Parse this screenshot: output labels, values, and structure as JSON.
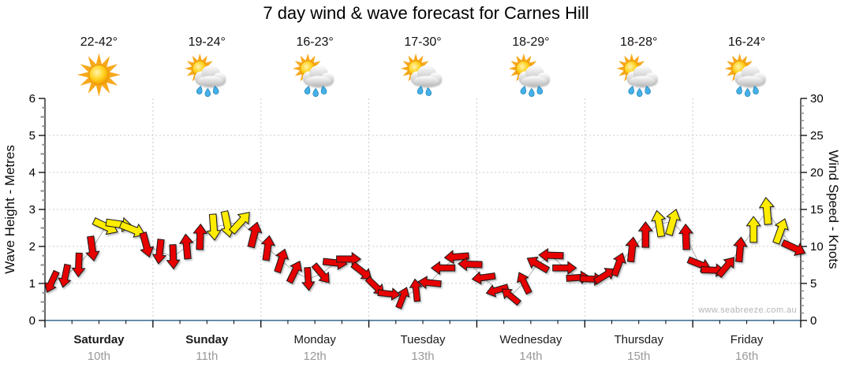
{
  "title": "7 day wind & wave forecast for Carnes Hill",
  "days": [
    {
      "name": "Saturday",
      "date": "10th",
      "temp": "22-42°",
      "icon": "sunny",
      "weekend": true
    },
    {
      "name": "Sunday",
      "date": "11th",
      "temp": "19-24°",
      "icon": "sun-cloud-rain",
      "weekend": true
    },
    {
      "name": "Monday",
      "date": "12th",
      "temp": "16-23°",
      "icon": "sun-cloud-rain",
      "weekend": false
    },
    {
      "name": "Tuesday",
      "date": "13th",
      "temp": "17-30°",
      "icon": "sun-cloud-light-rain",
      "weekend": false
    },
    {
      "name": "Wednesday",
      "date": "14th",
      "temp": "18-29°",
      "icon": "sun-cloud-rain",
      "weekend": false
    },
    {
      "name": "Thursday",
      "date": "15th",
      "temp": "18-28°",
      "icon": "sun-cloud-rain",
      "weekend": false
    },
    {
      "name": "Friday",
      "date": "16th",
      "temp": "16-24°",
      "icon": "sun-cloud-rain",
      "weekend": false
    }
  ],
  "chart_data": {
    "type": "scatter",
    "subtype": "wind-direction-arrow-timeseries",
    "title": "7 day wind & wave forecast for Carnes Hill",
    "x_categories": [
      "Saturday",
      "Sunday",
      "Monday",
      "Tuesday",
      "Wednesday",
      "Thursday",
      "Friday"
    ],
    "x_dates": [
      "10th",
      "11th",
      "12th",
      "13th",
      "14th",
      "15th",
      "16th"
    ],
    "slots_per_day": 8,
    "left_axis": {
      "label": "Wave Height - Metres",
      "min": 0,
      "max": 6,
      "ticks": [
        0,
        1,
        2,
        3,
        4,
        5,
        6
      ]
    },
    "right_axis": {
      "label": "Wind Speed - Knots",
      "min": 0,
      "max": 30,
      "ticks": [
        0,
        5,
        10,
        15,
        20,
        25,
        30
      ]
    },
    "scale_note": "axes aligned so 1 metre = 5 knots; grid on; dotted gridlines",
    "watermark": "www.seabreeze.com.au",
    "arrow_colors": {
      "normal": "#e60000",
      "strong": "#ffec00",
      "outline": "#1a1a1a"
    },
    "axis_colors": {
      "bottom_axis": "#33688a",
      "gridline": "#c8c8c8",
      "date_text": "#999999"
    },
    "points_format": "[day_index, slot_of_8, wind_knots, arrow_points_deg_cw_from_up, color r=red y=yellow]",
    "points": [
      [
        0,
        0,
        5.2,
        205,
        "r"
      ],
      [
        0,
        1,
        6.0,
        192,
        "r"
      ],
      [
        0,
        2,
        7.5,
        182,
        "r"
      ],
      [
        0,
        3,
        9.7,
        172,
        "r"
      ],
      [
        0,
        4,
        12.7,
        115,
        "y"
      ],
      [
        0,
        5,
        13.0,
        98,
        "y"
      ],
      [
        0,
        6,
        12.3,
        112,
        "y"
      ],
      [
        0,
        7,
        10.2,
        165,
        "r"
      ],
      [
        1,
        0,
        9.3,
        186,
        "r"
      ],
      [
        1,
        1,
        8.6,
        178,
        "r"
      ],
      [
        1,
        2,
        10.0,
        355,
        "r"
      ],
      [
        1,
        3,
        11.3,
        2,
        "r"
      ],
      [
        1,
        4,
        12.6,
        176,
        "y"
      ],
      [
        1,
        5,
        13.0,
        168,
        "y"
      ],
      [
        1,
        6,
        13.3,
        42,
        "y"
      ],
      [
        1,
        7,
        11.6,
        14,
        "r"
      ],
      [
        2,
        0,
        9.8,
        8,
        "r"
      ],
      [
        2,
        1,
        8.1,
        18,
        "r"
      ],
      [
        2,
        2,
        6.6,
        26,
        "r"
      ],
      [
        2,
        3,
        5.6,
        176,
        "r"
      ],
      [
        2,
        4,
        6.3,
        140,
        "r"
      ],
      [
        2,
        5,
        7.8,
        96,
        "r"
      ],
      [
        2,
        6,
        8.3,
        90,
        "r"
      ],
      [
        2,
        7,
        6.6,
        128,
        "r"
      ],
      [
        3,
        0,
        4.6,
        134,
        "r"
      ],
      [
        3,
        1,
        3.6,
        96,
        "r"
      ],
      [
        3,
        2,
        3.1,
        22,
        "r"
      ],
      [
        3,
        3,
        4.1,
        354,
        "r"
      ],
      [
        3,
        4,
        5.1,
        276,
        "r"
      ],
      [
        3,
        5,
        7.1,
        270,
        "r"
      ],
      [
        3,
        6,
        8.6,
        266,
        "r"
      ],
      [
        3,
        7,
        7.6,
        272,
        "r"
      ],
      [
        4,
        0,
        5.8,
        262,
        "r"
      ],
      [
        4,
        1,
        4.1,
        254,
        "r"
      ],
      [
        4,
        2,
        3.3,
        310,
        "r"
      ],
      [
        4,
        3,
        5.1,
        334,
        "r"
      ],
      [
        4,
        4,
        7.6,
        300,
        "r"
      ],
      [
        4,
        5,
        8.8,
        272,
        "r"
      ],
      [
        4,
        6,
        7.1,
        90,
        "r"
      ],
      [
        4,
        7,
        5.8,
        86,
        "r"
      ],
      [
        5,
        0,
        5.6,
        92,
        "r"
      ],
      [
        5,
        1,
        6.1,
        58,
        "r"
      ],
      [
        5,
        2,
        7.6,
        20,
        "r"
      ],
      [
        5,
        3,
        9.6,
        6,
        "r"
      ],
      [
        5,
        4,
        11.6,
        0,
        "r"
      ],
      [
        5,
        5,
        13.1,
        350,
        "y"
      ],
      [
        5,
        6,
        13.3,
        16,
        "y"
      ],
      [
        5,
        7,
        11.3,
        358,
        "r"
      ],
      [
        6,
        0,
        7.6,
        112,
        "r"
      ],
      [
        6,
        1,
        6.8,
        92,
        "r"
      ],
      [
        6,
        2,
        7.3,
        40,
        "r"
      ],
      [
        6,
        3,
        9.6,
        5,
        "r"
      ],
      [
        6,
        4,
        12.3,
        0,
        "y"
      ],
      [
        6,
        5,
        14.8,
        355,
        "y"
      ],
      [
        6,
        6,
        12.1,
        20,
        "y"
      ],
      [
        6,
        7,
        9.8,
        115,
        "r"
      ]
    ]
  }
}
